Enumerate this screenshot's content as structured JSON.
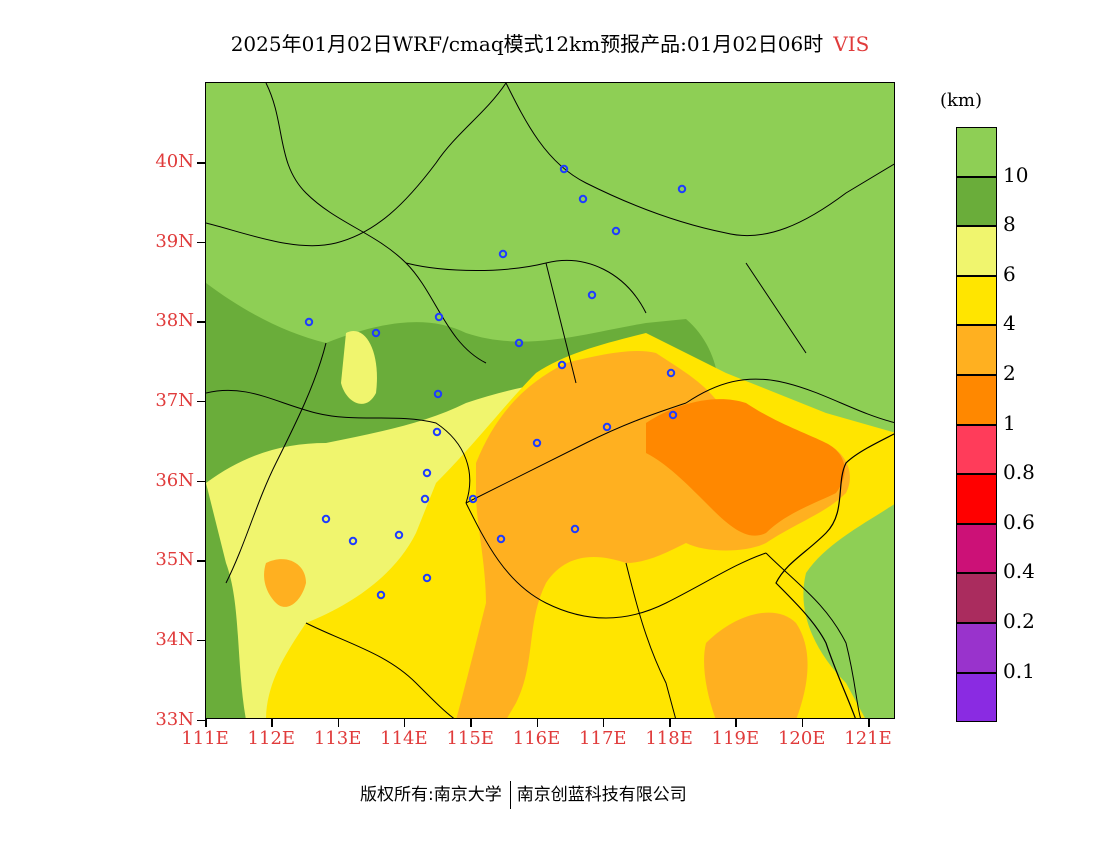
{
  "title": {
    "main": "2025年01月02日WRF/cmaq模式12km预报产品:01月02日06时",
    "variable": "VIS"
  },
  "axes": {
    "lat_labels": [
      "40N",
      "39N",
      "38N",
      "37N",
      "36N",
      "35N",
      "34N",
      "33N"
    ],
    "lon_labels": [
      "111E",
      "112E",
      "113E",
      "114E",
      "115E",
      "116E",
      "117E",
      "118E",
      "119E",
      "120E",
      "121E"
    ]
  },
  "legend": {
    "unit": "(km)",
    "colors": [
      "#8ecf55",
      "#6aad3a",
      "#f0f56e",
      "#ffe500",
      "#ffb020",
      "#ff8800",
      "#ff3c5a",
      "#ff0000",
      "#cc1177",
      "#aa2c5e",
      "#9933cc",
      "#8a2be2"
    ],
    "labels": [
      "10",
      "8",
      "6",
      "4",
      "2",
      "1",
      "0.8",
      "0.6",
      "0.4",
      "0.2",
      "0.1"
    ]
  },
  "map_layers": {
    "background": "#8ecf55",
    "dark_green": "#6aad3a",
    "light_yellow": "#f0f56e",
    "yellow": "#ffe500",
    "light_orange": "#ffb020",
    "orange": "#ff8800",
    "station_color": "#1e3cff"
  },
  "footer": {
    "copyright": "版权所有:南京大学",
    "company": "南京创蓝科技有限公司"
  }
}
